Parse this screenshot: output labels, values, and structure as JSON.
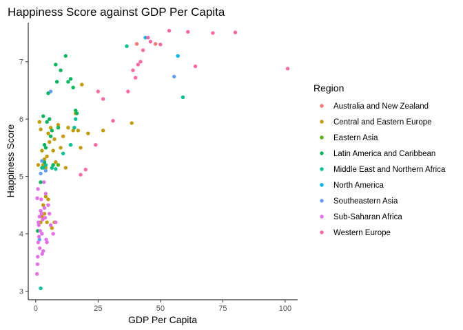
{
  "chart_data": {
    "type": "scatter",
    "title": "Happiness Score against GDP Per Capita",
    "xlabel": "GDP Per Capita",
    "ylabel": "Happiness Score",
    "xlim": [
      -3,
      105
    ],
    "ylim": [
      2.85,
      7.68
    ],
    "x_ticks": [
      0,
      25,
      50,
      75,
      100
    ],
    "y_ticks": [
      3,
      4,
      5,
      6,
      7
    ],
    "grid": false,
    "legend_title": "Region",
    "legend_position": "right",
    "series": [
      {
        "name": "Australia and New Zealand",
        "color": "#F8766D",
        "points": [
          [
            40.5,
            7.31
          ],
          [
            48,
            7.31
          ]
        ]
      },
      {
        "name": "Central and Eastern Europe",
        "color": "#C49A00",
        "points": [
          [
            1.5,
            5.95
          ],
          [
            2,
            5.82
          ],
          [
            2.5,
            5.45
          ],
          [
            3,
            5.2
          ],
          [
            3.5,
            5.3
          ],
          [
            4,
            5.15
          ],
          [
            4.5,
            5.35
          ],
          [
            5,
            5.75
          ],
          [
            5.5,
            5.6
          ],
          [
            6,
            5.85
          ],
          [
            6.5,
            5.15
          ],
          [
            7,
            5.45
          ],
          [
            7.5,
            5.65
          ],
          [
            8,
            5.25
          ],
          [
            9,
            5.9
          ],
          [
            10,
            5.5
          ],
          [
            11,
            5.7
          ],
          [
            12,
            5.15
          ],
          [
            13,
            5.85
          ],
          [
            14,
            5.55
          ],
          [
            15,
            5.8
          ],
          [
            16,
            6.1
          ],
          [
            17,
            5.8
          ],
          [
            18,
            5.5
          ],
          [
            18.5,
            6.6
          ],
          [
            21,
            5.75
          ],
          [
            27,
            5.8
          ],
          [
            38.5,
            5.93
          ],
          [
            3.5,
            4.35
          ],
          [
            4,
            4.65
          ],
          [
            3,
            4.5
          ],
          [
            2,
            4.2
          ],
          [
            4.5,
            4.2
          ],
          [
            7.5,
            4.2
          ],
          [
            2.5,
            4.3
          ],
          [
            6.5,
            4.1
          ],
          [
            5,
            4.6
          ],
          [
            1,
            5.2
          ]
        ]
      },
      {
        "name": "Eastern Asia",
        "color": "#53B400",
        "points": [
          [
            2,
            4.9
          ],
          [
            9,
            5.2
          ]
        ]
      },
      {
        "name": "Latin America and Caribbean",
        "color": "#00B65A",
        "points": [
          [
            0.8,
            4.05
          ],
          [
            2,
            4.9
          ],
          [
            2.5,
            5.15
          ],
          [
            3,
            6.05
          ],
          [
            3.5,
            5.55
          ],
          [
            4,
            5.5
          ],
          [
            4.5,
            5.95
          ],
          [
            5,
            6.45
          ],
          [
            5.5,
            6.0
          ],
          [
            6,
            5.7
          ],
          [
            7,
            5.2
          ],
          [
            8,
            6.95
          ],
          [
            8.5,
            6.65
          ],
          [
            9,
            5.85
          ],
          [
            10,
            6.85
          ],
          [
            12,
            7.1
          ],
          [
            13,
            6.65
          ],
          [
            14,
            6.7
          ],
          [
            15,
            6.55
          ],
          [
            16,
            6.15
          ],
          [
            16.5,
            6.1
          ],
          [
            3.5,
            5.25
          ],
          [
            6.5,
            5.8
          ]
        ]
      },
      {
        "name": "Middle East and Northern Africa",
        "color": "#00C094",
        "points": [
          [
            2,
            3.05
          ],
          [
            3,
            5.15
          ],
          [
            4,
            5.2
          ],
          [
            6.5,
            5.15
          ],
          [
            8,
            5.13
          ],
          [
            11,
            5.4
          ],
          [
            14,
            5.55
          ],
          [
            15.5,
            5.85
          ],
          [
            16,
            6.0
          ],
          [
            36.5,
            7.27
          ],
          [
            59,
            6.38
          ]
        ]
      },
      {
        "name": "North America",
        "color": "#00B6EB",
        "points": [
          [
            44,
            7.42
          ],
          [
            57,
            7.1
          ]
        ]
      },
      {
        "name": "Southeastern Asia",
        "color": "#629DFF",
        "points": [
          [
            1.5,
            3.9
          ],
          [
            2,
            5.05
          ],
          [
            2.5,
            5.27
          ],
          [
            4,
            5.1
          ],
          [
            6,
            6.48
          ],
          [
            55.5,
            6.74
          ]
        ]
      },
      {
        "name": "Sub-Saharan Africa",
        "color": "#E46FE8",
        "points": [
          [
            0.5,
            3.3
          ],
          [
            0.8,
            3.6
          ],
          [
            1,
            3.85
          ],
          [
            1.2,
            4.15
          ],
          [
            1.5,
            4.3
          ],
          [
            1.8,
            4.05
          ],
          [
            2,
            4.4
          ],
          [
            2.2,
            4.6
          ],
          [
            2.5,
            4.0
          ],
          [
            2.8,
            4.25
          ],
          [
            3,
            3.7
          ],
          [
            3.3,
            4.9
          ],
          [
            3.5,
            4.45
          ],
          [
            4,
            4.7
          ],
          [
            4.5,
            3.85
          ],
          [
            5,
            4.5
          ],
          [
            5.5,
            4.35
          ],
          [
            6,
            4.15
          ],
          [
            7,
            4.0
          ],
          [
            8,
            4.2
          ],
          [
            0.7,
            3.47
          ],
          [
            0.9,
            4.78
          ],
          [
            1.3,
            3.95
          ],
          [
            2.6,
            3.65
          ],
          [
            1.1,
            4.2
          ],
          [
            3.8,
            4.28
          ],
          [
            4.2,
            3.9
          ],
          [
            0.6,
            4.62
          ],
          [
            1.6,
            3.75
          ],
          [
            2.4,
            4.35
          ]
        ]
      },
      {
        "name": "Western Europe",
        "color": "#FF67A4",
        "points": [
          [
            18,
            5.03
          ],
          [
            20,
            5.12
          ],
          [
            24,
            5.55
          ],
          [
            25,
            6.48
          ],
          [
            27,
            6.35
          ],
          [
            31,
            5.97
          ],
          [
            37,
            6.48
          ],
          [
            39,
            6.85
          ],
          [
            40,
            6.72
          ],
          [
            41,
            6.95
          ],
          [
            42,
            7.0
          ],
          [
            43,
            7.2
          ],
          [
            45,
            7.42
          ],
          [
            46,
            7.35
          ],
          [
            50,
            7.3
          ],
          [
            53.5,
            7.54
          ],
          [
            61,
            7.52
          ],
          [
            64,
            6.92
          ],
          [
            71,
            7.5
          ],
          [
            80,
            7.51
          ],
          [
            101,
            6.88
          ]
        ]
      }
    ]
  }
}
